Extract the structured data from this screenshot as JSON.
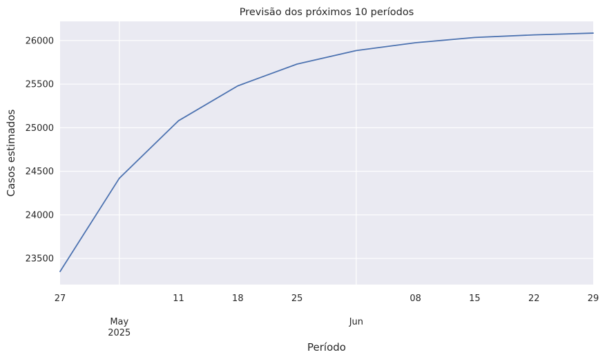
{
  "chart_data": {
    "type": "line",
    "title": "Previsão dos próximos 10 períodos",
    "xlabel": "Período",
    "ylabel": "Casos estimados",
    "x_range": [
      "2025-04-27",
      "2025-06-29"
    ],
    "ylim": [
      23200,
      26220
    ],
    "grid": true,
    "legend": "none",
    "colors": {
      "line": "#4c72b0",
      "background": "#eaeaf2",
      "grid": "#ffffff"
    },
    "y_ticks": [
      {
        "value": 23500,
        "label": "23500"
      },
      {
        "value": 24000,
        "label": "24000"
      },
      {
        "value": 24500,
        "label": "24500"
      },
      {
        "value": 25000,
        "label": "25000"
      },
      {
        "value": 25500,
        "label": "25500"
      },
      {
        "value": 26000,
        "label": "26000"
      }
    ],
    "x_minor_ticks": [
      {
        "date": "2025-04-27",
        "label": "27"
      },
      {
        "date": "2025-05-11",
        "label": "11"
      },
      {
        "date": "2025-05-18",
        "label": "18"
      },
      {
        "date": "2025-05-25",
        "label": "25"
      },
      {
        "date": "2025-06-08",
        "label": "08"
      },
      {
        "date": "2025-06-15",
        "label": "15"
      },
      {
        "date": "2025-06-22",
        "label": "22"
      },
      {
        "date": "2025-06-29",
        "label": "29"
      }
    ],
    "x_major_ticks": [
      {
        "date": "2025-05-04",
        "label": "May",
        "sublabel": "2025"
      },
      {
        "date": "2025-06-01",
        "label": "Jun",
        "sublabel": ""
      }
    ],
    "series": [
      {
        "x": [
          "2025-04-27",
          "2025-05-04",
          "2025-05-11",
          "2025-05-18",
          "2025-05-25",
          "2025-06-01",
          "2025-06-08",
          "2025-06-15",
          "2025-06-22",
          "2025-06-29"
        ],
        "y": [
          23350,
          24420,
          25080,
          25480,
          25730,
          25885,
          25975,
          26035,
          26065,
          26085
        ]
      }
    ]
  }
}
